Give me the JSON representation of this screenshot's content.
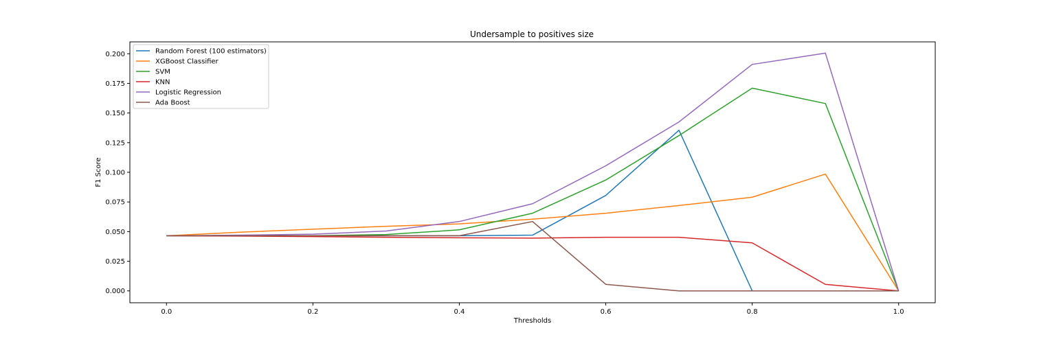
{
  "chart_data": {
    "type": "line",
    "title": "Undersample to positives size",
    "xlabel": "Thresholds",
    "ylabel": "F1 Score",
    "xlim": [
      -0.05,
      1.05
    ],
    "ylim": [
      -0.01,
      0.21
    ],
    "xticks": [
      0.0,
      0.2,
      0.4,
      0.6,
      0.8,
      1.0
    ],
    "xtick_labels": [
      "0.0",
      "0.2",
      "0.4",
      "0.6",
      "0.8",
      "1.0"
    ],
    "yticks": [
      0.0,
      0.025,
      0.05,
      0.075,
      0.1,
      0.125,
      0.15,
      0.175,
      0.2
    ],
    "ytick_labels": [
      "0.000",
      "0.025",
      "0.050",
      "0.075",
      "0.100",
      "0.125",
      "0.150",
      "0.175",
      "0.200"
    ],
    "grid": false,
    "legend_position": "top-left",
    "x": [
      0.0,
      0.1,
      0.2,
      0.3,
      0.4,
      0.5,
      0.6,
      0.7,
      0.8,
      0.9,
      1.0
    ],
    "series": [
      {
        "name": "Random Forest (100 estimators)",
        "color": "#1f77b4",
        "values": [
          0.0465,
          0.0465,
          0.0465,
          0.0465,
          0.0465,
          0.047,
          0.0805,
          0.1355,
          0.0,
          0.0,
          0.0
        ]
      },
      {
        "name": "XGBoost Classifier",
        "color": "#ff7f0e",
        "values": [
          0.0465,
          0.0495,
          0.052,
          0.0545,
          0.0565,
          0.0605,
          0.0655,
          0.072,
          0.079,
          0.0985,
          0.0
        ]
      },
      {
        "name": "SVM",
        "color": "#2ca02c",
        "values": [
          0.0465,
          0.0465,
          0.0465,
          0.0475,
          0.0515,
          0.0655,
          0.0935,
          0.131,
          0.171,
          0.158,
          0.0
        ]
      },
      {
        "name": "KNN",
        "color": "#d62728",
        "values": [
          0.0465,
          0.0462,
          0.0458,
          0.0452,
          0.0448,
          0.0445,
          0.0452,
          0.0452,
          0.0405,
          0.0055,
          0.0
        ]
      },
      {
        "name": "Logistic Regression",
        "color": "#9467bd",
        "values": [
          0.0465,
          0.047,
          0.0478,
          0.0505,
          0.0585,
          0.0735,
          0.1055,
          0.1425,
          0.191,
          0.2005,
          0.0
        ]
      },
      {
        "name": "Ada Boost",
        "color": "#8c564b",
        "values": [
          0.0465,
          0.0465,
          0.0465,
          0.0465,
          0.0465,
          0.0585,
          0.0055,
          0.0,
          0.0,
          0.0,
          0.0
        ]
      }
    ]
  }
}
